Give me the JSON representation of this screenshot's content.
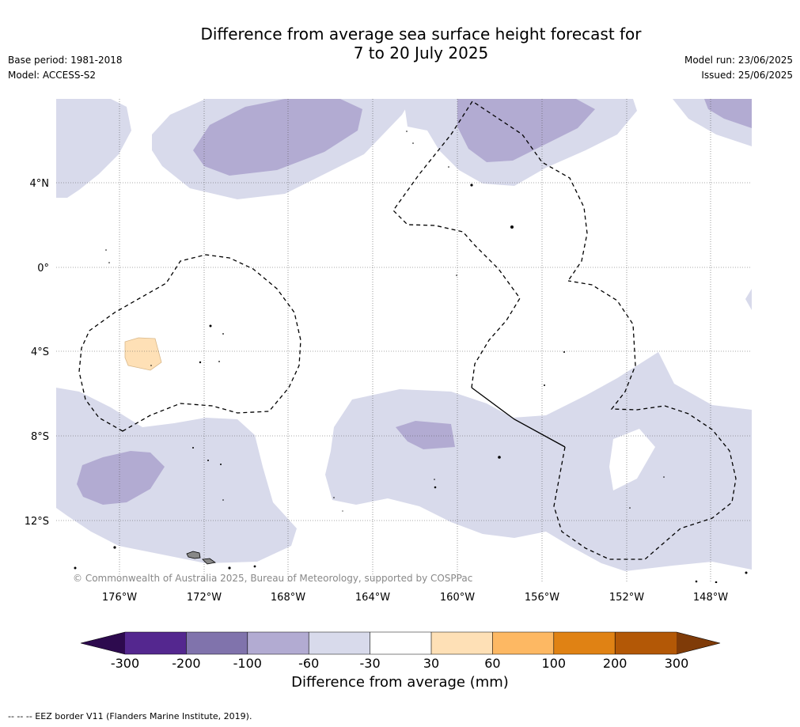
{
  "title_line1": "Difference from average sea surface height forecast for",
  "title_line2": "7 to 20 July 2025",
  "meta_left": [
    "Base period: 1981-2018",
    "Model: ACCESS-S2"
  ],
  "meta_right": [
    "Model run: 23/06/2025",
    "Issued: 25/06/2025"
  ],
  "copyright": "© Commonwealth of Australia 2025, Bureau of Meteorology, supported by COSPPac",
  "colorbar": {
    "label": "Difference from average (mm)",
    "ticks": [
      "-300",
      "-200",
      "-100",
      "-60",
      "-30",
      "30",
      "60",
      "100",
      "200",
      "300"
    ],
    "colors": {
      "under": "#2d0a4e",
      "bins": [
        "#54278f",
        "#8073ac",
        "#b2abd2",
        "#d8daeb",
        "#ffffff",
        "#fee0b6",
        "#fdb863",
        "#e08214",
        "#b35806"
      ],
      "over": "#7f3b08"
    }
  },
  "footer": "--  --  -- EEZ border V11 (Flanders Marine Institute, 2019).",
  "chart_data": {
    "type": "heatmap",
    "region": "Central Pacific Ocean",
    "lon_ticks": [
      "176°W",
      "172°W",
      "168°W",
      "164°W",
      "160°W",
      "156°W",
      "152°W",
      "148°W"
    ],
    "lat_ticks": [
      "4°N",
      "0°",
      "4°S",
      "8°S",
      "12°S"
    ],
    "legend": "bottom",
    "grid": true
  }
}
